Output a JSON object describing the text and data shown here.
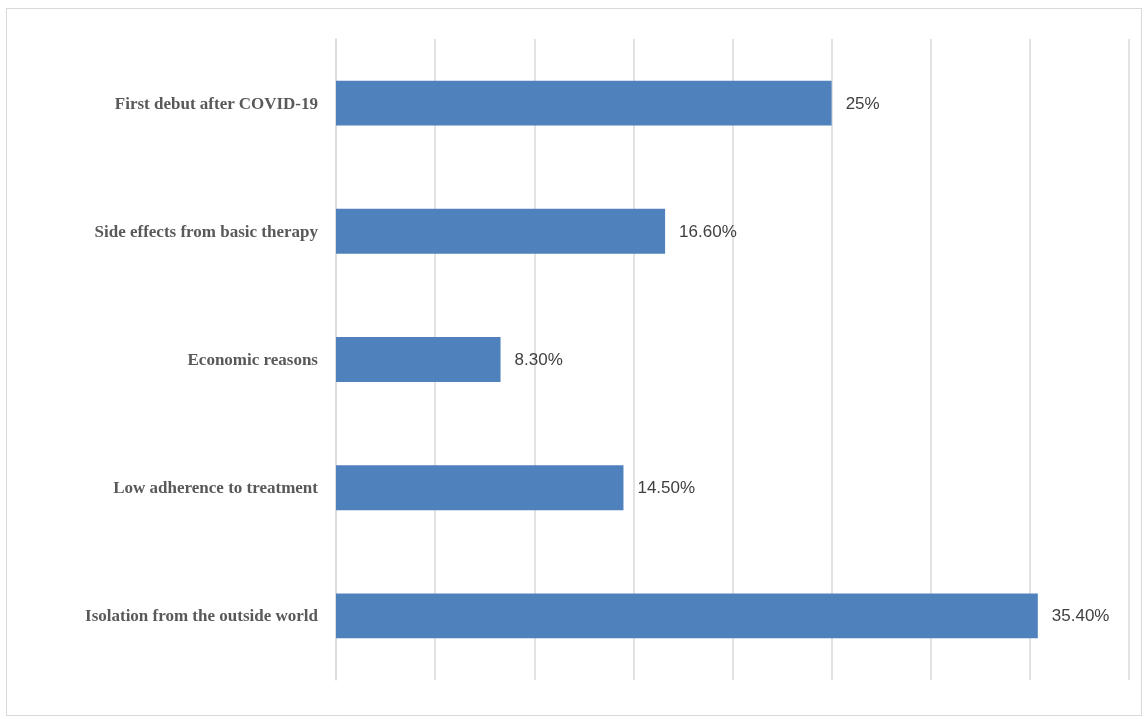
{
  "chart_data": {
    "type": "bar",
    "orientation": "horizontal",
    "categories": [
      "First debut after COVID-19",
      "Side effects from basic therapy",
      "Economic reasons",
      "Low adherence to treatment",
      "Isolation from the outside world"
    ],
    "values": [
      25,
      16.6,
      8.3,
      14.5,
      35.4
    ],
    "value_labels": [
      "25%",
      "16.60%",
      "8.30%",
      "14.50%",
      "35.40%"
    ],
    "color": "#4f81bd",
    "xlim": [
      0,
      40
    ],
    "xticks": [
      {
        "value": 0,
        "label": null
      },
      {
        "value": 5,
        "label": null
      },
      {
        "value": 10,
        "label": null
      },
      {
        "value": 15,
        "label": null
      },
      {
        "value": 20,
        "label": null
      },
      {
        "value": 25,
        "label": null
      },
      {
        "value": 30,
        "label": null
      },
      {
        "value": 35,
        "label": null
      },
      {
        "value": 40,
        "label": null
      }
    ],
    "grid": "x",
    "tick_labels": "y"
  }
}
